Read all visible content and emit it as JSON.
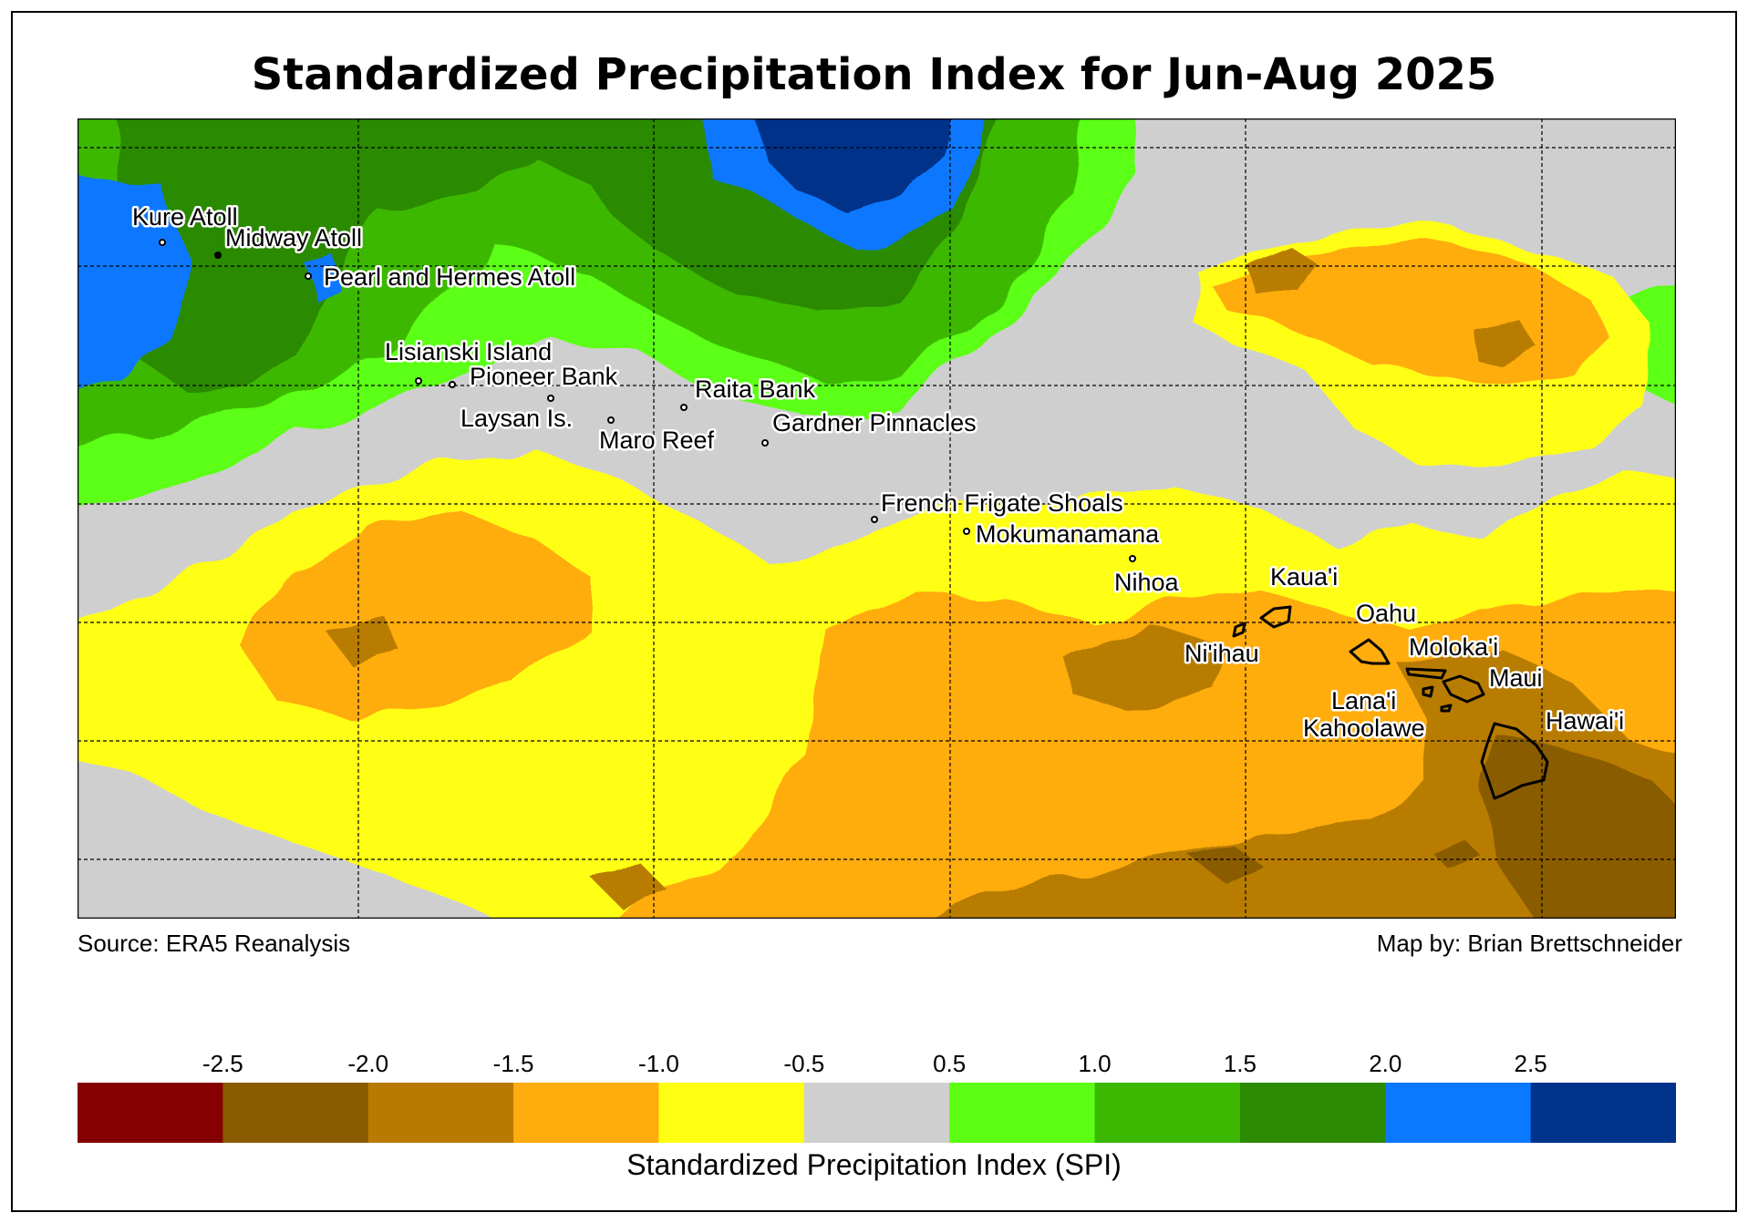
{
  "title": "Standardized Precipitation Index for Jun-Aug 2025",
  "source": "Source: ERA5 Reanalysis",
  "credit": "Map by: Brian Brettschneider",
  "colorbar": {
    "title": "Standardized Precipitation Index (SPI)",
    "ticks": [
      "-2.5",
      "-2.0",
      "-1.5",
      "-1.0",
      "-0.5",
      "0.5",
      "1.0",
      "1.5",
      "2.0",
      "2.5"
    ],
    "colors": [
      "#850000",
      "#8a5c00",
      "#b87b00",
      "#ffac0f",
      "#ffff14",
      "#cfcfcf",
      "#5cff14",
      "#3cb800",
      "#2b8a00",
      "#0a78ff",
      "#00338a"
    ]
  },
  "places": [
    {
      "name": "Kure Atoll"
    },
    {
      "name": "Midway Atoll"
    },
    {
      "name": "Pearl and Hermes Atoll"
    },
    {
      "name": "Lisianski Island"
    },
    {
      "name": "Pioneer Bank"
    },
    {
      "name": "Raita Bank"
    },
    {
      "name": "Laysan Is."
    },
    {
      "name": "Gardner Pinnacles"
    },
    {
      "name": "Maro Reef"
    },
    {
      "name": "French Frigate Shoals"
    },
    {
      "name": "Mokumanamana"
    },
    {
      "name": "Nihoa"
    },
    {
      "name": "Kaua'i"
    },
    {
      "name": "Ni'ihau"
    },
    {
      "name": "Oahu"
    },
    {
      "name": "Moloka'i"
    },
    {
      "name": "Maui"
    },
    {
      "name": "Lana'i"
    },
    {
      "name": "Kahoolawe"
    },
    {
      "name": "Hawai'i"
    }
  ]
}
